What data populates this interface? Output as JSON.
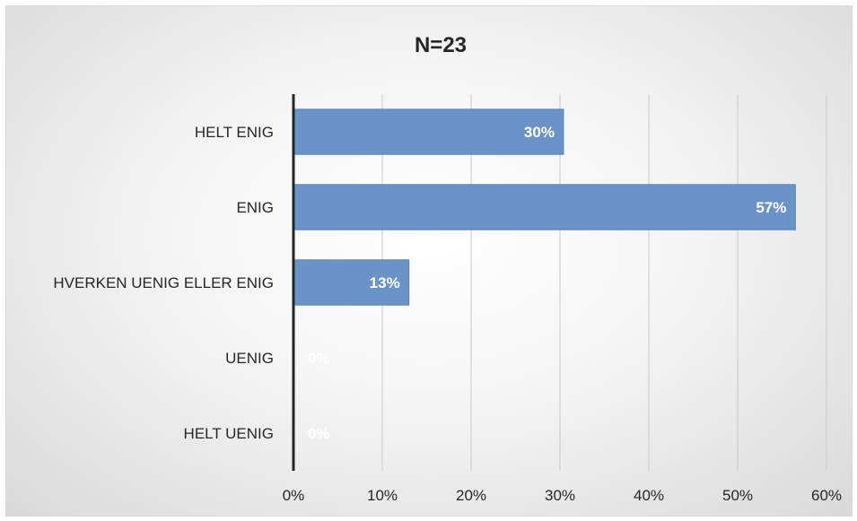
{
  "chart_data": {
    "type": "bar",
    "orientation": "horizontal",
    "title": "N=23",
    "categories": [
      "HELT ENIG",
      "ENIG",
      "HVERKEN UENIG ELLER ENIG",
      "UENIG",
      "HELT UENIG"
    ],
    "values": [
      30.4,
      56.5,
      13.0,
      0,
      0
    ],
    "data_labels": [
      "30%",
      "57%",
      "13%",
      "0%",
      "0%"
    ],
    "xlim": [
      0,
      60
    ],
    "x_ticks": [
      0,
      10,
      20,
      30,
      40,
      50,
      60
    ],
    "x_tick_labels": [
      "0%",
      "10%",
      "20%",
      "30%",
      "40%",
      "50%",
      "60%"
    ],
    "grid": true,
    "legend": "none",
    "colors": {
      "bar": "#6a93c7",
      "bar_stroke": "#5b82b5",
      "axis": "#262626",
      "grid": "#c9c9c9"
    }
  }
}
